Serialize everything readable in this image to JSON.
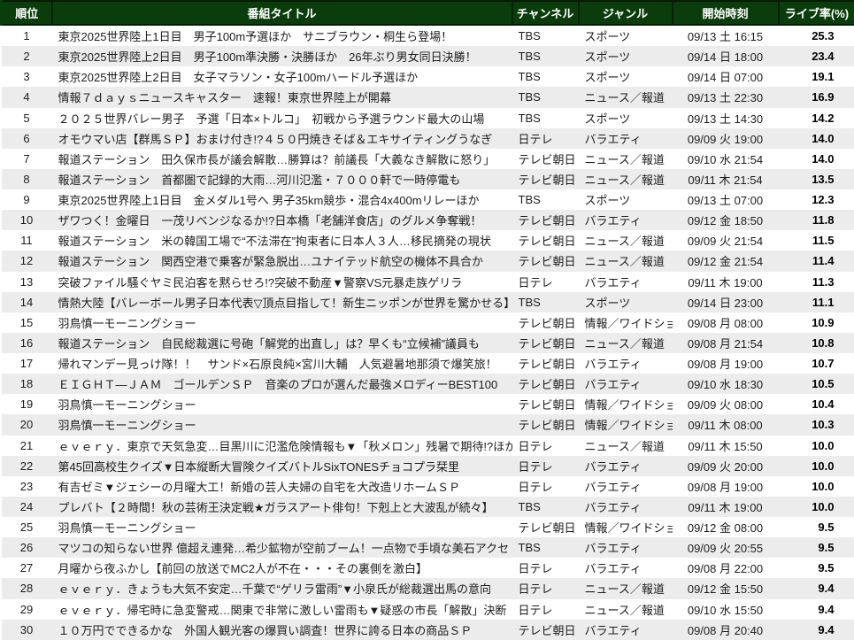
{
  "colors": {
    "header_bg": "#0b3d0c",
    "header_text": "#ffffff",
    "header_separator": "#052306",
    "row_stripe": "#ececec",
    "body_text": "#1c1c1c",
    "rate_text": "#000000"
  },
  "chart_data": {
    "type": "table",
    "title": "",
    "columns": [
      "順位",
      "番組タイトル",
      "チャンネル",
      "ジャンル",
      "開始時刻",
      "ライブ率(%)"
    ],
    "rows": [
      [
        1,
        "東京2025世界陸上1日目　男子100m予選ほか　サニブラウン・桐生ら登場！",
        "TBS",
        "スポーツ",
        "09/13 土 16:15",
        25.3
      ],
      [
        2,
        "東京2025世界陸上2日目　男子100m準決勝・決勝ほか　26年ぶり男女同日決勝！",
        "TBS",
        "スポーツ",
        "09/14 日 18:00",
        23.4
      ],
      [
        3,
        "東京2025世界陸上2日目　女子マラソン・女子100mハードル予選ほか",
        "TBS",
        "スポーツ",
        "09/14 日 07:00",
        19.1
      ],
      [
        4,
        "情報７ｄａｙｓニュースキャスター　速報！東京世界陸上が開幕",
        "TBS",
        "ニュース／報道",
        "09/13 土 22:30",
        16.9
      ],
      [
        5,
        "２０２５世界バレー男子　予選「日本×トルコ」　初戦から予選ラウンド最大の山場",
        "TBS",
        "スポーツ",
        "09/13 土 14:30",
        14.2
      ],
      [
        6,
        "オモウマい店【群馬ＳＰ】おまけ付き!?４５０円焼きそば＆エキサイティングうなぎ",
        "日テレ",
        "バラエティ",
        "09/09 火 19:00",
        14.0
      ],
      [
        7,
        "報道ステーション　田久保市長が議会解散…勝算は？前議長「大義なき解散に怒り」",
        "テレビ朝日",
        "ニュース／報道",
        "09/10 水 21:54",
        14.0
      ],
      [
        8,
        "報道ステーション　首都圏で記録的大雨…河川氾濫・７０００軒で一時停電も",
        "テレビ朝日",
        "ニュース／報道",
        "09/11 木 21:54",
        13.5
      ],
      [
        9,
        "東京2025世界陸上1日目　金メダル1号へ 男子35km競歩・混合4x400mリレーほか",
        "TBS",
        "スポーツ",
        "09/13 土 07:00",
        12.3
      ],
      [
        10,
        "ザワつく！金曜日　一茂リベンジなるか!?日本橋「老舗洋食店」のグルメ争奪戦！",
        "テレビ朝日",
        "バラエティ",
        "09/12 金 18:50",
        11.8
      ],
      [
        11,
        "報道ステーション　米の韓国工場で“不法滞在”拘束者に日本人３人…移民摘発の現状",
        "テレビ朝日",
        "ニュース／報道",
        "09/09 火 21:54",
        11.5
      ],
      [
        12,
        "報道ステーション　関西空港で乗客が緊急脱出…ユナイテッド航空の機体不具合か",
        "テレビ朝日",
        "ニュース／報道",
        "09/12 金 21:54",
        11.4
      ],
      [
        13,
        "突破ファイル騒ぐヤミ民泊客を黙らせろ!?突破不動産▼警察VS元暴走族ゲリラ",
        "日テレ",
        "バラエティ",
        "09/11 木 19:00",
        11.3
      ],
      [
        14,
        "情熱大陸【バレーボール男子日本代表▽頂点目指して！新生ニッポンが世界を驚かせる】",
        "TBS",
        "スポーツ",
        "09/14 日 23:00",
        11.1
      ],
      [
        15,
        "羽鳥慎一モーニングショー",
        "テレビ朝日",
        "情報／ワイドショー",
        "09/08 月 08:00",
        10.9
      ],
      [
        16,
        "報道ステーション　自民総裁選に号砲「解党的出直し」は？早くも“立候補”議員も",
        "テレビ朝日",
        "ニュース／報道",
        "09/08 月 21:54",
        10.8
      ],
      [
        17,
        "帰れマンデー見っけ隊！！　サンド×石原良純×宮川大輔　人気避暑地那須で爆笑旅！",
        "テレビ朝日",
        "バラエティ",
        "09/08 月 19:00",
        10.7
      ],
      [
        18,
        "ＥＩＧＨＴ―ＪＡＭ　ゴールデンＳＰ　音楽のプロが選んだ最強メロディーBEST100",
        "テレビ朝日",
        "バラエティ",
        "09/10 水 18:30",
        10.5
      ],
      [
        19,
        "羽鳥慎一モーニングショー",
        "テレビ朝日",
        "情報／ワイドショー",
        "09/09 火 08:00",
        10.4
      ],
      [
        20,
        "羽鳥慎一モーニングショー",
        "テレビ朝日",
        "情報／ワイドショー",
        "09/11 木 08:00",
        10.3
      ],
      [
        21,
        "ｅｖｅｒｙ．東京で天気急変…目黒川に氾濫危険情報も▼「秋メロン」残暑で期待!?ほか",
        "日テレ",
        "ニュース／報道",
        "09/11 木 15:50",
        10.0
      ],
      [
        22,
        "第45回高校生クイズ▼日本縦断大冒険クイズバトルSixTONESチョコプラ栞里",
        "日テレ",
        "バラエティ",
        "09/09 火 20:00",
        10.0
      ],
      [
        23,
        "有吉ゼミ▼ジェシーの月曜大工！新婚の芸人夫婦の自宅を大改造リホームＳＰ",
        "日テレ",
        "バラエティ",
        "09/08 月 19:00",
        10.0
      ],
      [
        24,
        "プレバト【２時間！秋の芸術王決定戦★ガラスアート俳句！下剋上と大波乱が続々】",
        "TBS",
        "バラエティ",
        "09/11 木 19:00",
        10.0
      ],
      [
        25,
        "羽鳥慎一モーニングショー",
        "テレビ朝日",
        "情報／ワイドショー",
        "09/12 金 08:00",
        9.5
      ],
      [
        26,
        "マツコの知らない世界 億超え連発…希少鉱物が空前ブーム！一点物で手頃な美石アクセ",
        "TBS",
        "バラエティ",
        "09/09 火 20:55",
        9.5
      ],
      [
        27,
        "月曜から夜ふかし【前回の放送でMC2人が不在・・・その裏側を激白】",
        "日テレ",
        "バラエティ",
        "09/08 月 22:00",
        9.5
      ],
      [
        28,
        "ｅｖｅｒｙ．きょうも大気不安定…千葉で“ゲリラ雷雨”▼小泉氏が総裁選出馬の意向",
        "日テレ",
        "ニュース／報道",
        "09/12 金 15:50",
        9.4
      ],
      [
        29,
        "ｅｖｅｒｙ．帰宅時に急変警戒…関東で非常に激しい雷雨も▼疑惑の市長「解散」決断",
        "日テレ",
        "ニュース／報道",
        "09/10 水 15:50",
        9.4
      ],
      [
        30,
        "１０万円でできるかな　外国人観光客の爆買い調査！世界に誇る日本の商品ＳＰ",
        "テレビ朝日",
        "バラエティ",
        "09/08 月 20:40",
        9.4
      ]
    ]
  }
}
